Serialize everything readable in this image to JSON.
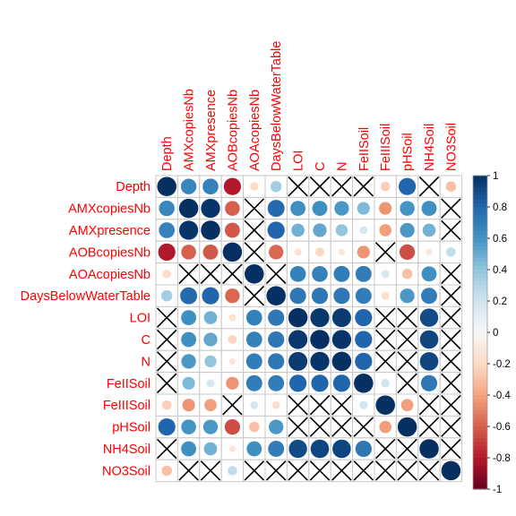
{
  "chart_data": {
    "type": "heatmap",
    "subtype": "correlation-matrix",
    "variables": [
      "Depth",
      "AMXcopiesNb",
      "AMXpresence",
      "AOBcopiesNb",
      "AOAcopiesNb",
      "DaysBelowWaterTable",
      "LOI",
      "C",
      "N",
      "FeIISoil",
      "FeIIISoil",
      "pHSoil",
      "NH4Soil",
      "NO3Soil"
    ],
    "matrix": [
      [
        1.0,
        0.66,
        0.68,
        -0.8,
        -0.2,
        0.35,
        null,
        null,
        null,
        null,
        -0.25,
        0.8,
        null,
        -0.3
      ],
      [
        0.66,
        1.0,
        0.98,
        -0.6,
        null,
        0.78,
        0.62,
        0.62,
        0.58,
        0.45,
        -0.45,
        0.6,
        0.62,
        null
      ],
      [
        0.68,
        0.98,
        1.0,
        -0.62,
        null,
        0.8,
        0.48,
        0.52,
        0.4,
        0.18,
        -0.42,
        0.58,
        0.48,
        null
      ],
      [
        -0.8,
        -0.6,
        -0.62,
        1.0,
        null,
        -0.58,
        -0.15,
        -0.22,
        -0.12,
        -0.45,
        null,
        -0.65,
        -0.12,
        0.25
      ],
      [
        -0.2,
        null,
        null,
        null,
        1.0,
        null,
        0.68,
        0.68,
        0.7,
        0.7,
        0.18,
        -0.3,
        0.62,
        null
      ],
      [
        0.35,
        0.78,
        0.8,
        -0.58,
        null,
        1.0,
        0.72,
        0.72,
        0.72,
        0.7,
        -0.18,
        0.58,
        0.7,
        null
      ],
      [
        null,
        0.62,
        0.48,
        -0.15,
        0.68,
        0.72,
        1.0,
        0.97,
        0.96,
        0.8,
        null,
        null,
        0.9,
        null
      ],
      [
        null,
        0.62,
        0.52,
        -0.22,
        0.68,
        0.72,
        0.97,
        1.0,
        0.98,
        0.8,
        null,
        null,
        0.92,
        null
      ],
      [
        null,
        0.58,
        0.4,
        -0.12,
        0.7,
        0.72,
        0.96,
        0.98,
        1.0,
        0.8,
        null,
        null,
        0.92,
        null
      ],
      [
        null,
        0.45,
        0.18,
        -0.45,
        0.7,
        0.7,
        0.8,
        0.8,
        0.8,
        1.0,
        0.2,
        null,
        0.72,
        null
      ],
      [
        -0.25,
        -0.45,
        -0.42,
        null,
        0.18,
        -0.18,
        null,
        null,
        null,
        0.2,
        1.0,
        -0.42,
        null,
        null
      ],
      [
        0.8,
        0.6,
        0.58,
        -0.65,
        -0.3,
        0.58,
        null,
        null,
        null,
        null,
        -0.42,
        1.0,
        null,
        null
      ],
      [
        null,
        0.62,
        0.48,
        -0.12,
        0.62,
        0.7,
        0.9,
        0.92,
        0.92,
        0.72,
        null,
        null,
        1.0,
        null
      ],
      [
        -0.3,
        null,
        null,
        0.25,
        null,
        null,
        null,
        null,
        null,
        null,
        null,
        null,
        null,
        1.0
      ]
    ],
    "non_significant_marker": "cross",
    "colorbar": {
      "ticks": [
        "1",
        "0.8",
        "0.6",
        "0.4",
        "0.2",
        "0",
        "-0.2",
        "-0.4",
        "-0.6",
        "-0.8",
        "-1"
      ],
      "range": [
        -1,
        1
      ]
    },
    "colors": {
      "positive_strong": "#053061",
      "positive_mid": "#2166ac",
      "positive_light": "#92c5de",
      "neutral": "#f7f7f7",
      "negative_light": "#f4a582",
      "negative_mid": "#d6604d",
      "negative_strong": "#67001f",
      "label": "#ff0000",
      "grid": "#c8c8c8"
    }
  }
}
